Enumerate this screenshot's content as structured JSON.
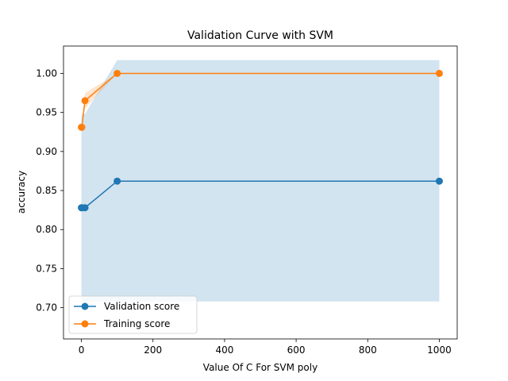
{
  "chart_data": {
    "type": "line",
    "title": "Validation Curve with SVM",
    "xlabel": "Value Of C For SVM poly",
    "ylabel": "accuracy",
    "xlim": [
      -50,
      1050
    ],
    "ylim": [
      0.66,
      1.035
    ],
    "xticks": [
      0,
      200,
      400,
      600,
      800,
      1000
    ],
    "xtick_labels": [
      "0",
      "200",
      "400",
      "600",
      "800",
      "1000"
    ],
    "yticks": [
      0.7,
      0.75,
      0.8,
      0.85,
      0.9,
      0.95,
      1.0
    ],
    "ytick_labels": [
      "0.70",
      "0.75",
      "0.80",
      "0.85",
      "0.90",
      "0.95",
      "1.00"
    ],
    "grid": false,
    "legend_position": "lower-left",
    "x": [
      0.1,
      1,
      10,
      100,
      1000
    ],
    "series": [
      {
        "name": "Validation score",
        "color": "#1f77b4",
        "values": [
          0.828,
          0.828,
          0.828,
          0.862,
          0.862
        ],
        "band_lower": [
          0.708,
          0.708,
          0.708,
          0.708,
          0.708
        ],
        "band_upper": [
          0.948,
          0.948,
          0.948,
          1.017,
          1.017
        ]
      },
      {
        "name": "Training score",
        "color": "#ff7f0e",
        "values": [
          0.931,
          0.931,
          0.965,
          1.0,
          1.0
        ],
        "band_lower": [
          0.931,
          0.931,
          0.955,
          1.0,
          1.0
        ],
        "band_upper": [
          0.931,
          0.931,
          0.975,
          1.0,
          1.0
        ]
      }
    ]
  }
}
